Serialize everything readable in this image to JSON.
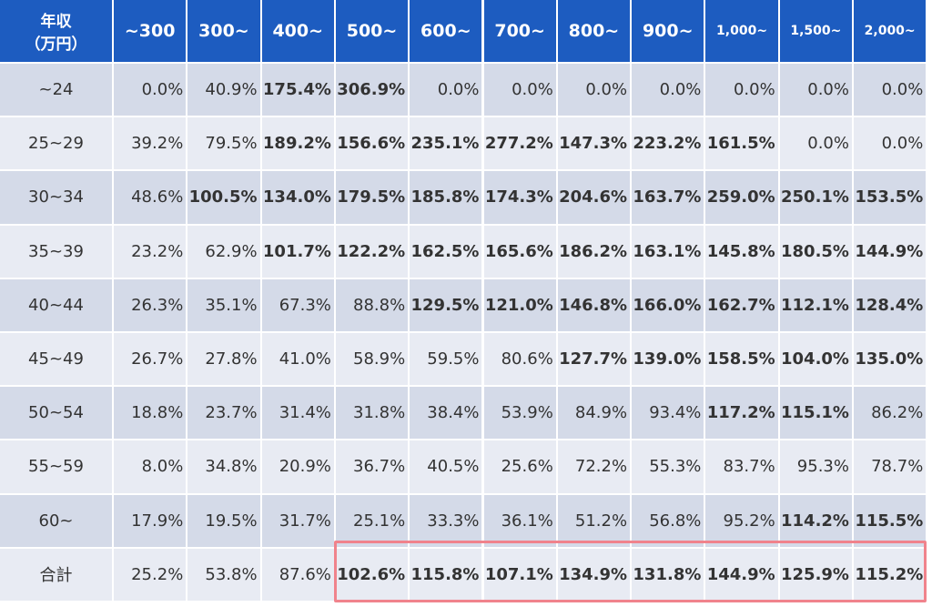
{
  "table": {
    "corner": [
      "年収",
      "（万円）"
    ],
    "columns": [
      "~300",
      "300~",
      "400~",
      "500~",
      "600~",
      "700~",
      "800~",
      "900~",
      "1,000~",
      "1,500~",
      "2,000~"
    ],
    "rows": [
      {
        "label": "~24",
        "cells": [
          "0.0%",
          "40.9%",
          "175.4%",
          "306.9%",
          "0.0%",
          "0.0%",
          "0.0%",
          "0.0%",
          "0.0%",
          "0.0%",
          "0.0%"
        ]
      },
      {
        "label": "25~29",
        "cells": [
          "39.2%",
          "79.5%",
          "189.2%",
          "156.6%",
          "235.1%",
          "277.2%",
          "147.3%",
          "223.2%",
          "161.5%",
          "0.0%",
          "0.0%"
        ]
      },
      {
        "label": "30~34",
        "cells": [
          "48.6%",
          "100.5%",
          "134.0%",
          "179.5%",
          "185.8%",
          "174.3%",
          "204.6%",
          "163.7%",
          "259.0%",
          "250.1%",
          "153.5%"
        ]
      },
      {
        "label": "35~39",
        "cells": [
          "23.2%",
          "62.9%",
          "101.7%",
          "122.2%",
          "162.5%",
          "165.6%",
          "186.2%",
          "163.1%",
          "145.8%",
          "180.5%",
          "144.9%"
        ]
      },
      {
        "label": "40~44",
        "cells": [
          "26.3%",
          "35.1%",
          "67.3%",
          "88.8%",
          "129.5%",
          "121.0%",
          "146.8%",
          "166.0%",
          "162.7%",
          "112.1%",
          "128.4%"
        ]
      },
      {
        "label": "45~49",
        "cells": [
          "26.7%",
          "27.8%",
          "41.0%",
          "58.9%",
          "59.5%",
          "80.6%",
          "127.7%",
          "139.0%",
          "158.5%",
          "104.0%",
          "135.0%"
        ]
      },
      {
        "label": "50~54",
        "cells": [
          "18.8%",
          "23.7%",
          "31.4%",
          "31.8%",
          "38.4%",
          "53.9%",
          "84.9%",
          "93.4%",
          "117.2%",
          "115.1%",
          "86.2%"
        ]
      },
      {
        "label": "55~59",
        "cells": [
          "8.0%",
          "34.8%",
          "20.9%",
          "36.7%",
          "40.5%",
          "25.6%",
          "72.2%",
          "55.3%",
          "83.7%",
          "95.3%",
          "78.7%"
        ]
      },
      {
        "label": "60~",
        "cells": [
          "17.9%",
          "19.5%",
          "31.7%",
          "25.1%",
          "33.3%",
          "36.1%",
          "51.2%",
          "56.8%",
          "95.2%",
          "114.2%",
          "115.5%"
        ]
      },
      {
        "label": "合計",
        "cells": [
          "25.2%",
          "53.8%",
          "87.6%",
          "102.6%",
          "115.8%",
          "107.1%",
          "134.9%",
          "131.8%",
          "144.9%",
          "125.9%",
          "115.2%"
        ]
      }
    ]
  }
}
